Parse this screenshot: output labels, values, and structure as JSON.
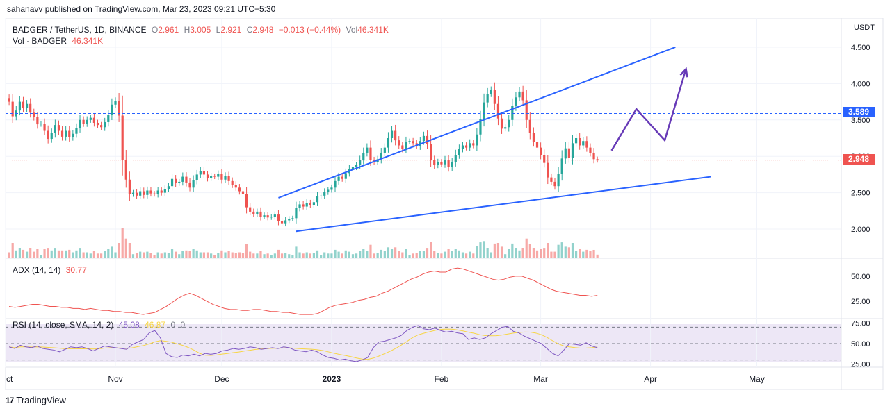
{
  "header": {
    "published": "sahanavv published on TradingView.com, Mar 23, 2023 09:21 UTC+5:30"
  },
  "legend": {
    "symbol": "BADGER / TetherUS, 1D, BINANCE",
    "open_label": "O",
    "open": "2.961",
    "high_label": "H",
    "high": "3.005",
    "low_label": "L",
    "low": "2.921",
    "close_label": "C",
    "close": "2.948",
    "change": "−0.013 (−0.44%)",
    "vol_label": "Vol",
    "vol": "46.341K",
    "vol_series": "Vol · BADGER",
    "vol_series_value": "46.341K"
  },
  "adx": {
    "label": "ADX (14, 14)",
    "value": "30.77"
  },
  "rsi": {
    "label": "RSI (14, close, SMA, 14, 2)",
    "value1": "45.08",
    "value2": "46.87",
    "value3": "0",
    "value4": "0"
  },
  "currency": "USDT",
  "price_tags": {
    "hline": "3.589",
    "last": "2.948"
  },
  "colors": {
    "up": "#26a69a",
    "down": "#ef5350",
    "trendline": "#2962ff",
    "projection": "#673ab7",
    "adx": "#ef5350",
    "rsi": "#7e57c2",
    "rsi_ma": "#f7d543"
  },
  "footer": {
    "brand": "TradingView",
    "logo_text": "17"
  },
  "chart_data": {
    "type": "candlestick",
    "symbol": "BADGER / TetherUS",
    "interval": "1D",
    "y_axis": {
      "ticks": [
        "4.500",
        "4.000",
        "3.500",
        "3.000",
        "2.500",
        "2.000"
      ],
      "ylim": [
        1.6,
        4.9
      ]
    },
    "x_axis": {
      "ticks": [
        "ct",
        "Nov",
        "Dec",
        "2023",
        "Feb",
        "Mar",
        "Apr",
        "May"
      ]
    },
    "horizontal_line": 3.589,
    "last_close": 2.948,
    "price_path": [
      3.75,
      3.55,
      3.63,
      3.75,
      3.66,
      3.72,
      3.6,
      3.54,
      3.44,
      3.45,
      3.35,
      3.24,
      3.32,
      3.43,
      3.35,
      3.27,
      3.35,
      3.26,
      3.31,
      3.39,
      3.5,
      3.45,
      3.5,
      3.53,
      3.46,
      3.43,
      3.4,
      3.47,
      3.57,
      3.71,
      3.76,
      3.56,
      2.95,
      2.68,
      2.48,
      2.5,
      2.46,
      2.52,
      2.47,
      2.53,
      2.49,
      2.48,
      2.53,
      2.5,
      2.55,
      2.59,
      2.69,
      2.63,
      2.65,
      2.72,
      2.64,
      2.57,
      2.67,
      2.75,
      2.8,
      2.75,
      2.7,
      2.73,
      2.72,
      2.76,
      2.68,
      2.73,
      2.66,
      2.61,
      2.57,
      2.52,
      2.48,
      2.3,
      2.24,
      2.21,
      2.24,
      2.17,
      2.19,
      2.16,
      2.17,
      2.2,
      2.11,
      2.08,
      2.12,
      2.14,
      2.15,
      2.29,
      2.34,
      2.31,
      2.36,
      2.33,
      2.37,
      2.45,
      2.46,
      2.51,
      2.54,
      2.57,
      2.66,
      2.72,
      2.69,
      2.77,
      2.83,
      2.85,
      2.88,
      2.95,
      3.05,
      3.12,
      2.95,
      2.92,
      2.96,
      3.05,
      3.12,
      3.25,
      3.35,
      3.22,
      3.15,
      3.1,
      3.2,
      3.21,
      3.18,
      3.14,
      3.21,
      3.28,
      3.17,
      2.95,
      2.88,
      2.92,
      2.89,
      2.95,
      2.85,
      2.92,
      3.02,
      3.1,
      3.15,
      3.12,
      3.18,
      3.15,
      3.3,
      3.51,
      3.74,
      3.86,
      3.91,
      3.72,
      3.52,
      3.38,
      3.4,
      3.5,
      3.69,
      3.81,
      3.89,
      3.77,
      3.5,
      3.32,
      3.2,
      3.12,
      3.02,
      2.91,
      2.71,
      2.65,
      2.59,
      2.76,
      2.97,
      3.11,
      2.98,
      3.18,
      3.25,
      3.15,
      3.21,
      3.12,
      3.05,
      2.961,
      2.948
    ],
    "trendlines": [
      {
        "name": "upper",
        "from": {
          "x": "Dec 17 2022",
          "y": 2.43
        },
        "to": {
          "x": "Apr 08 2023",
          "y": 4.5
        }
      },
      {
        "name": "lower",
        "from": {
          "x": "Dec 22 2022",
          "y": 1.97
        },
        "to": {
          "x": "Apr 18 2023",
          "y": 2.72
        }
      }
    ],
    "projection": [
      {
        "x": "Mar 21 2023",
        "y": 3.08
      },
      {
        "x": "Mar 28 2023",
        "y": 3.65
      },
      {
        "x": "Apr 05 2023",
        "y": 3.22
      },
      {
        "x": "Apr 11 2023",
        "y": 4.2
      }
    ],
    "adx_ticks": [
      "50.00",
      "25.00"
    ],
    "adx_ylim": [
      10,
      65
    ],
    "adx": [
      20,
      19,
      20,
      21,
      22,
      22,
      21,
      20,
      20,
      19,
      19,
      18,
      18,
      17,
      18,
      17,
      16,
      16,
      15,
      15,
      14,
      14,
      13,
      12,
      13,
      14,
      17,
      20,
      24,
      28,
      31,
      33,
      31,
      28,
      25,
      22,
      20,
      18,
      17,
      17,
      16,
      16,
      17,
      17,
      16,
      15,
      15,
      14,
      14,
      13,
      12,
      12,
      12,
      13,
      16,
      19,
      21,
      22,
      23,
      24,
      26,
      27,
      29,
      30,
      33,
      35,
      38,
      41,
      44,
      47,
      49,
      52,
      54,
      55,
      54,
      54,
      57,
      58,
      57,
      55,
      53,
      51,
      49,
      47,
      46,
      47,
      49,
      50,
      50,
      48,
      46,
      43,
      40,
      37,
      35,
      34,
      33,
      32,
      31,
      31,
      30,
      31
    ],
    "rsi_ticks": [
      "75.00",
      "50.00",
      "25.00"
    ],
    "rsi_ylim": [
      22,
      78
    ],
    "rsi_levels": [
      70,
      50,
      30
    ],
    "rsi": [
      46,
      44,
      48,
      46,
      45,
      47,
      44,
      43,
      42,
      40,
      43,
      46,
      45,
      46,
      44,
      41,
      44,
      47,
      46,
      45,
      44,
      43,
      49,
      52,
      55,
      63,
      66,
      57,
      38,
      34,
      33,
      36,
      35,
      37,
      35,
      38,
      37,
      38,
      41,
      42,
      44,
      43,
      44,
      46,
      45,
      43,
      44,
      45,
      44,
      46,
      45,
      42,
      41,
      40,
      42,
      40,
      36,
      33,
      32,
      30,
      31,
      29,
      28,
      30,
      33,
      45,
      52,
      53,
      55,
      57,
      60,
      66,
      70,
      72,
      68,
      67,
      69,
      66,
      64,
      65,
      63,
      62,
      55,
      57,
      55,
      57,
      62,
      66,
      70,
      71,
      65,
      63,
      59,
      56,
      53,
      50,
      44,
      38,
      35,
      42,
      50,
      49,
      48,
      51,
      47,
      45
    ]
  }
}
